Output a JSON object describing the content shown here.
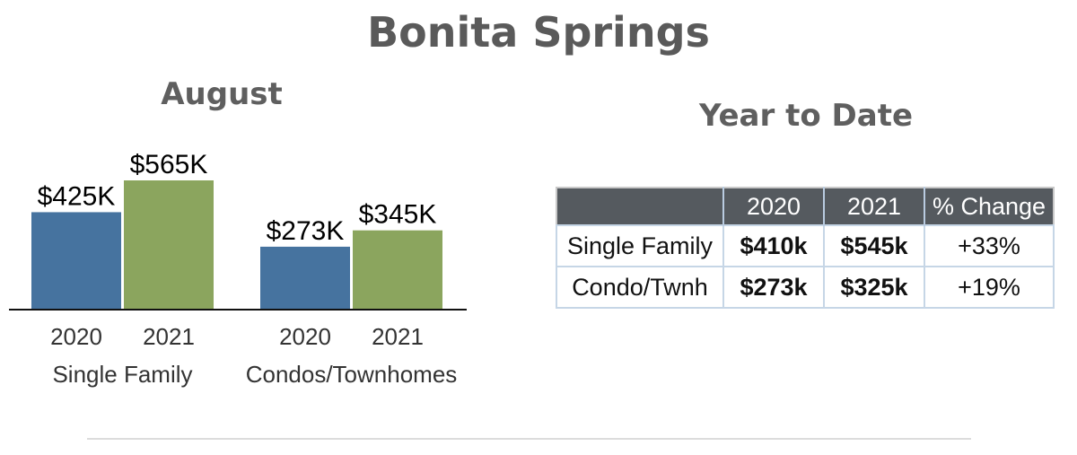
{
  "title": "Bonita Springs",
  "august": {
    "title": "August"
  },
  "chart_data": {
    "type": "bar",
    "title": "August",
    "groups": [
      "Single Family",
      "Condos/Townhomes"
    ],
    "categories": [
      "2020",
      "2021"
    ],
    "series": [
      {
        "group": "Single Family",
        "values": [
          425,
          565
        ],
        "labels": [
          "$425K",
          "$565K"
        ]
      },
      {
        "group": "Condos/Townhomes",
        "values": [
          273,
          345
        ],
        "labels": [
          "$273K",
          "$345K"
        ]
      }
    ],
    "colors": {
      "2020": "#46739f",
      "2021": "#8ba55e"
    },
    "unit": "$K",
    "ylim": [
      0,
      600
    ],
    "grid": false,
    "legend": "none"
  },
  "ytd": {
    "title": "Year to Date",
    "headers": [
      "",
      "2020",
      "2021",
      "% Change"
    ],
    "rows": [
      {
        "label": "Single Family",
        "v2020": "$410k",
        "v2021": "$545k",
        "change": "+33%"
      },
      {
        "label": "Condo/Twnh",
        "v2020": "$273k",
        "v2021": "$325k",
        "change": "+19%"
      }
    ]
  }
}
